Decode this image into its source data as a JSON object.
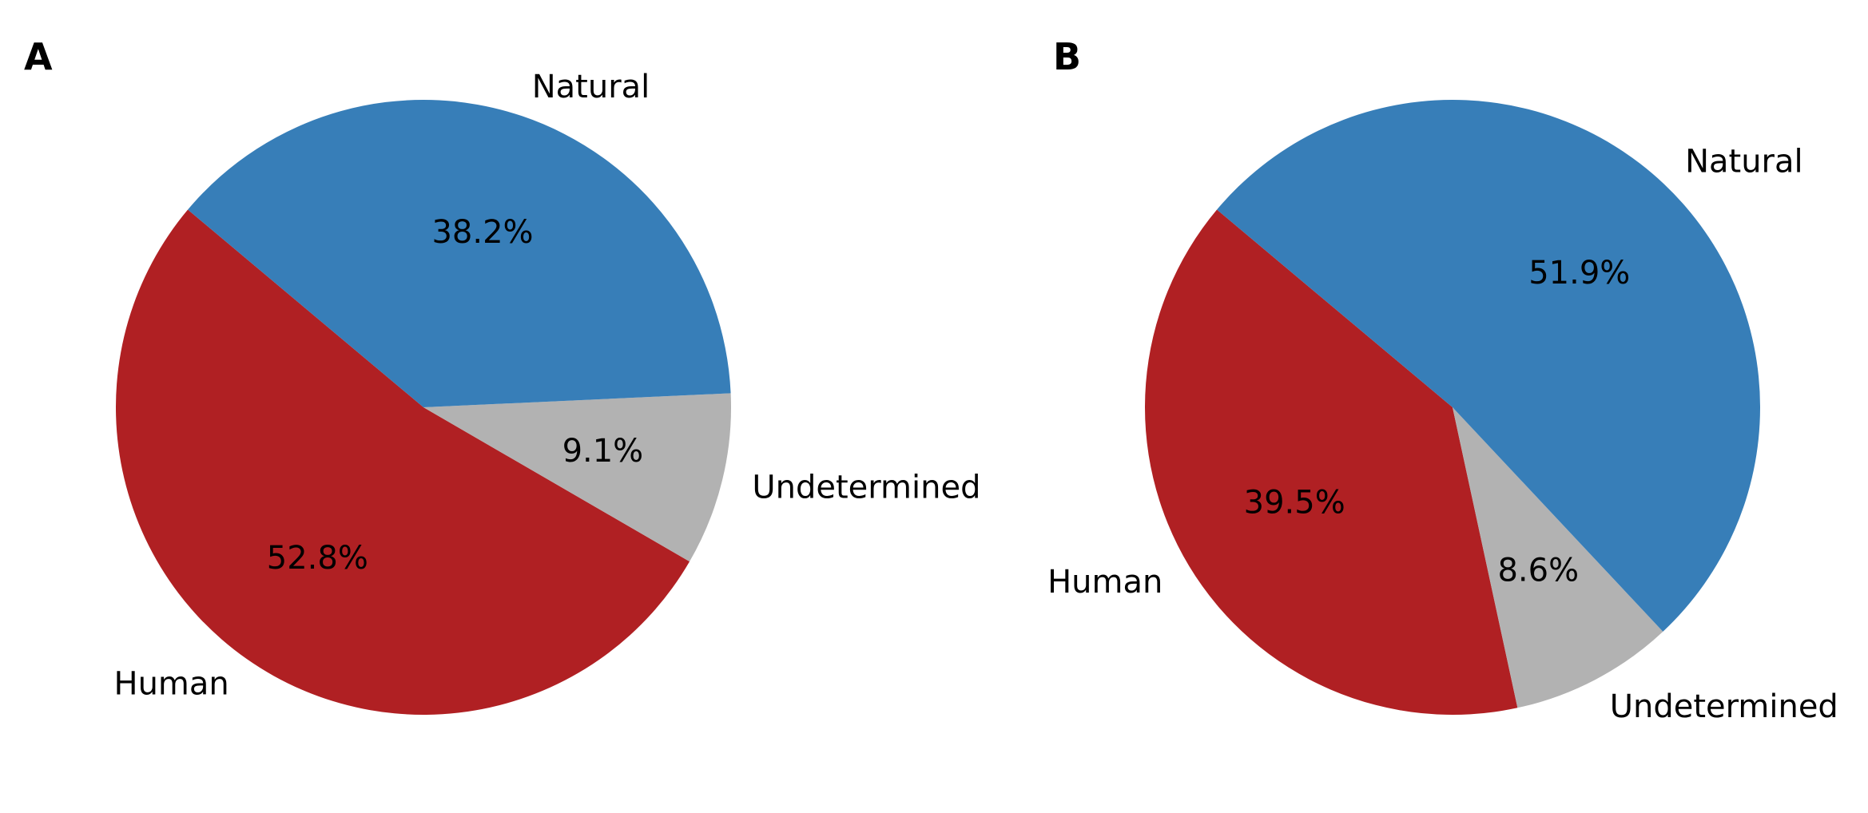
{
  "chart_data": [
    {
      "type": "pie",
      "panel": "A",
      "start_angle_deg": 140,
      "slices": [
        {
          "label": "Human",
          "value": 52.8,
          "pct_text": "52.8%",
          "color": "#b02023"
        },
        {
          "label": "Undetermined",
          "value": 9.1,
          "pct_text": "9.1%",
          "color": "#b2b2b2"
        },
        {
          "label": "Natural",
          "value": 38.2,
          "pct_text": "38.2%",
          "color": "#377eb8"
        }
      ]
    },
    {
      "type": "pie",
      "panel": "B",
      "start_angle_deg": 140,
      "slices": [
        {
          "label": "Human",
          "value": 39.5,
          "pct_text": "39.5%",
          "color": "#b02023"
        },
        {
          "label": "Undetermined",
          "value": 8.6,
          "pct_text": "8.6%",
          "color": "#b2b2b2"
        },
        {
          "label": "Natural",
          "value": 51.9,
          "pct_text": "51.9%",
          "color": "#377eb8"
        }
      ]
    }
  ]
}
